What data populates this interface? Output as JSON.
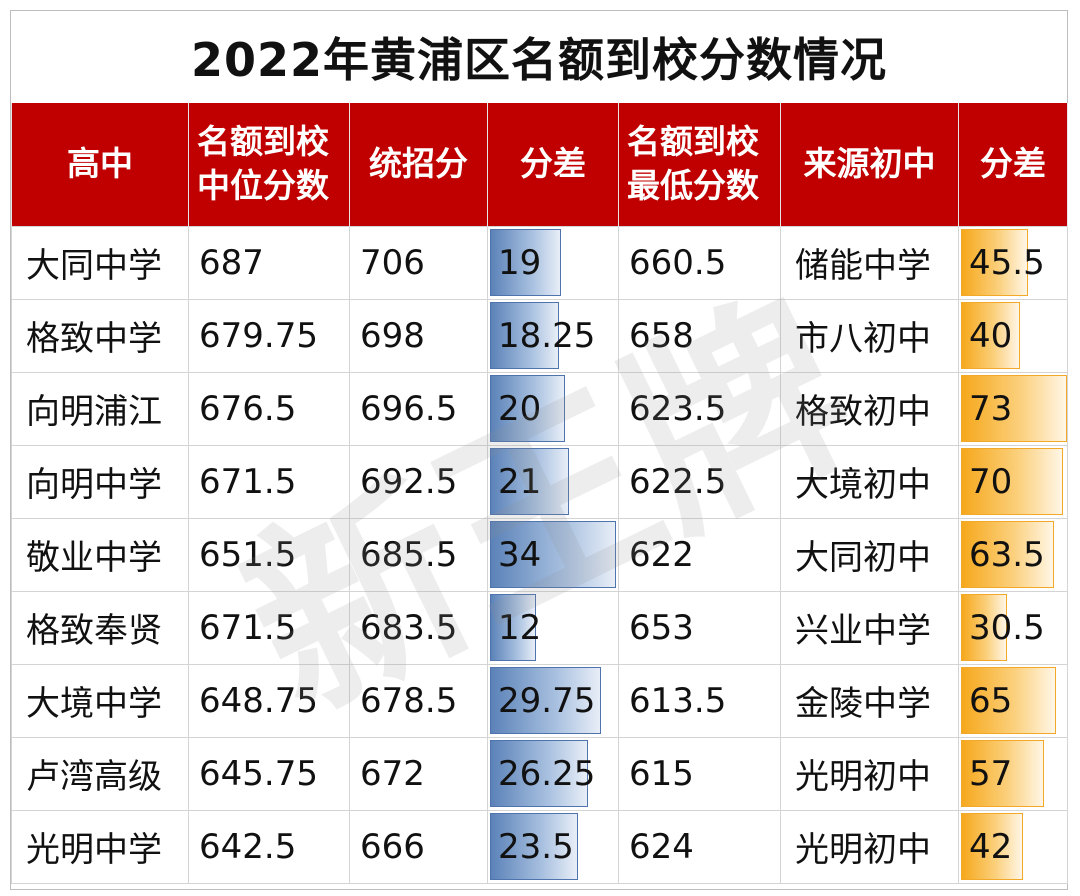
{
  "title": "2022年黄浦区名额到校分数情况",
  "headers": {
    "h1": "高中",
    "h2_line1": "名额到校",
    "h2_line2": "中位分数",
    "h3": "统招分",
    "h4": "分差",
    "h5_line1": "名额到校",
    "h5_line2": "最低分数",
    "h6": "来源初中",
    "h7": "分差"
  },
  "rows": [
    {
      "school": "大同中学",
      "median": "687",
      "general": "706",
      "diff": "19",
      "min": "660.5",
      "source": "储能中学",
      "diff2": "45.5"
    },
    {
      "school": "格致中学",
      "median": "679.75",
      "general": "698",
      "diff": "18.25",
      "min": "658",
      "source": "市八初中",
      "diff2": "40"
    },
    {
      "school": "向明浦江",
      "median": "676.5",
      "general": "696.5",
      "diff": "20",
      "min": "623.5",
      "source": "格致初中",
      "diff2": "73"
    },
    {
      "school": "向明中学",
      "median": "671.5",
      "general": "692.5",
      "diff": "21",
      "min": "622.5",
      "source": "大境初中",
      "diff2": "70"
    },
    {
      "school": "敬业中学",
      "median": "651.5",
      "general": "685.5",
      "diff": "34",
      "min": "622",
      "source": "大同初中",
      "diff2": "63.5"
    },
    {
      "school": "格致奉贤",
      "median": "671.5",
      "general": "683.5",
      "diff": "12",
      "min": "653",
      "source": "兴业中学",
      "diff2": "30.5"
    },
    {
      "school": "大境中学",
      "median": "648.75",
      "general": "678.5",
      "diff": "29.75",
      "min": "613.5",
      "source": "金陵中学",
      "diff2": "65"
    },
    {
      "school": "卢湾高级",
      "median": "645.75",
      "general": "672",
      "diff": "26.25",
      "min": "615",
      "source": "光明初中",
      "diff2": "57"
    },
    {
      "school": "光明中学",
      "median": "642.5",
      "general": "666",
      "diff": "23.5",
      "min": "624",
      "source": "光明初中",
      "diff2": "42"
    }
  ],
  "watermark": "新王牌",
  "colors": {
    "header_bg": "#c00000",
    "header_text": "#ffffff",
    "bar_blue": "#5b82b8",
    "bar_orange": "#f6a81c"
  }
}
